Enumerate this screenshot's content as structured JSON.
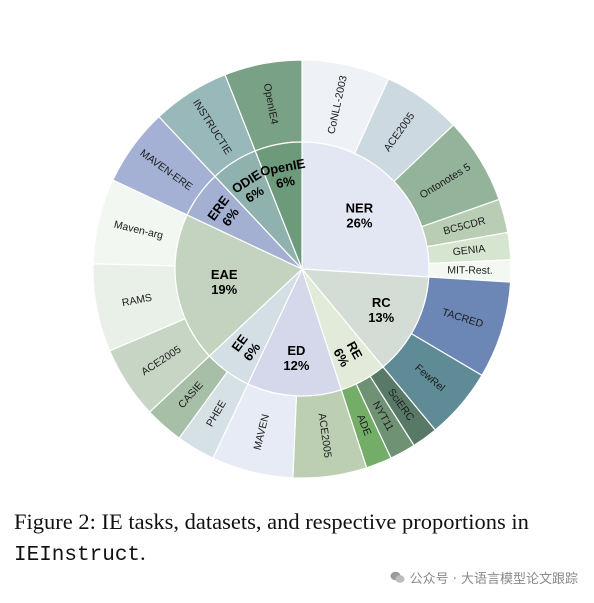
{
  "figure": {
    "caption_prefix": "Figure 2: IE tasks, datasets, and respective proportions in ",
    "caption_code": "IEInstruct",
    "caption_suffix": ".",
    "watermark": "公众号 · 大语言模型论文跟踪"
  },
  "chart_data": {
    "type": "sunburst",
    "levels": 2,
    "tasks": [
      {
        "name": "NER",
        "percent": 26,
        "label": "26%",
        "color": "#e3e7f4",
        "datasets": [
          {
            "name": "CoNLL-2003",
            "value": 6.8,
            "color": "#eef2f7"
          },
          {
            "name": "ACE2005",
            "value": 6.1,
            "color": "#cdd9e0"
          },
          {
            "name": "Ontonotes 5",
            "value": 6.7,
            "color": "#93b39a"
          },
          {
            "name": "BC5CDR",
            "value": 2.6,
            "color": "#b9cdb5"
          },
          {
            "name": "GENIA",
            "value": 2.1,
            "color": "#d6e5d0"
          },
          {
            "name": "MIT-Rest.",
            "value": 1.7,
            "color": "#f4f8f2"
          }
        ]
      },
      {
        "name": "RC",
        "percent": 13,
        "label": "13%",
        "color": "#d3ddd6",
        "datasets": [
          {
            "name": "TACRED",
            "value": 7.5,
            "color": "#6c86b5"
          },
          {
            "name": "FewRel",
            "value": 5.5,
            "color": "#5f8b97"
          }
        ]
      },
      {
        "name": "RE",
        "percent": 6,
        "label": "6%",
        "color": "#e2ebd9",
        "datasets": [
          {
            "name": "SciERC",
            "value": 2.0,
            "color": "#587966"
          },
          {
            "name": "NYT11",
            "value": 2.0,
            "color": "#6e9273"
          },
          {
            "name": "ADE",
            "value": 2.0,
            "color": "#74ad67"
          }
        ]
      },
      {
        "name": "ED",
        "percent": 12,
        "label": "12%",
        "color": "#d5d8ea",
        "datasets": [
          {
            "name": "ACE2005",
            "value": 5.7,
            "color": "#bccfb3"
          },
          {
            "name": "MAVEN",
            "value": 6.3,
            "color": "#e7ebf5"
          }
        ]
      },
      {
        "name": "EE",
        "percent": 6,
        "label": "6%",
        "color": "#d4dee5",
        "datasets": [
          {
            "name": "PHEE",
            "value": 3.0,
            "color": "#d6e1e6"
          },
          {
            "name": "CASIE",
            "value": 3.0,
            "color": "#a7bfa7"
          }
        ]
      },
      {
        "name": "EAE",
        "percent": 19,
        "label": "19%",
        "color": "#c4d3c0",
        "datasets": [
          {
            "name": "ACE2005",
            "value": 5.6,
            "color": "#c7d6c4"
          },
          {
            "name": "RAMS",
            "value": 6.8,
            "color": "#e9f0e7"
          },
          {
            "name": "Maven-arg",
            "value": 6.6,
            "color": "#f3f7f2"
          }
        ]
      },
      {
        "name": "ERE",
        "percent": 6,
        "label": "6%",
        "color": "#a3b0d2",
        "datasets": [
          {
            "name": "MAVEN-ERE",
            "value": 6.0,
            "color": "#a4b1d4"
          }
        ]
      },
      {
        "name": "ODIE",
        "percent": 6,
        "label": "6%",
        "color": "#8fb2ae",
        "datasets": [
          {
            "name": "INSTRUCTIE",
            "value": 6.0,
            "color": "#98b8ba"
          }
        ]
      },
      {
        "name": "OpenIE",
        "percent": 6,
        "label": "6%",
        "color": "#6e9a7c",
        "datasets": [
          {
            "name": "OpenIE4",
            "value": 6.0,
            "color": "#79a185"
          }
        ]
      }
    ]
  }
}
